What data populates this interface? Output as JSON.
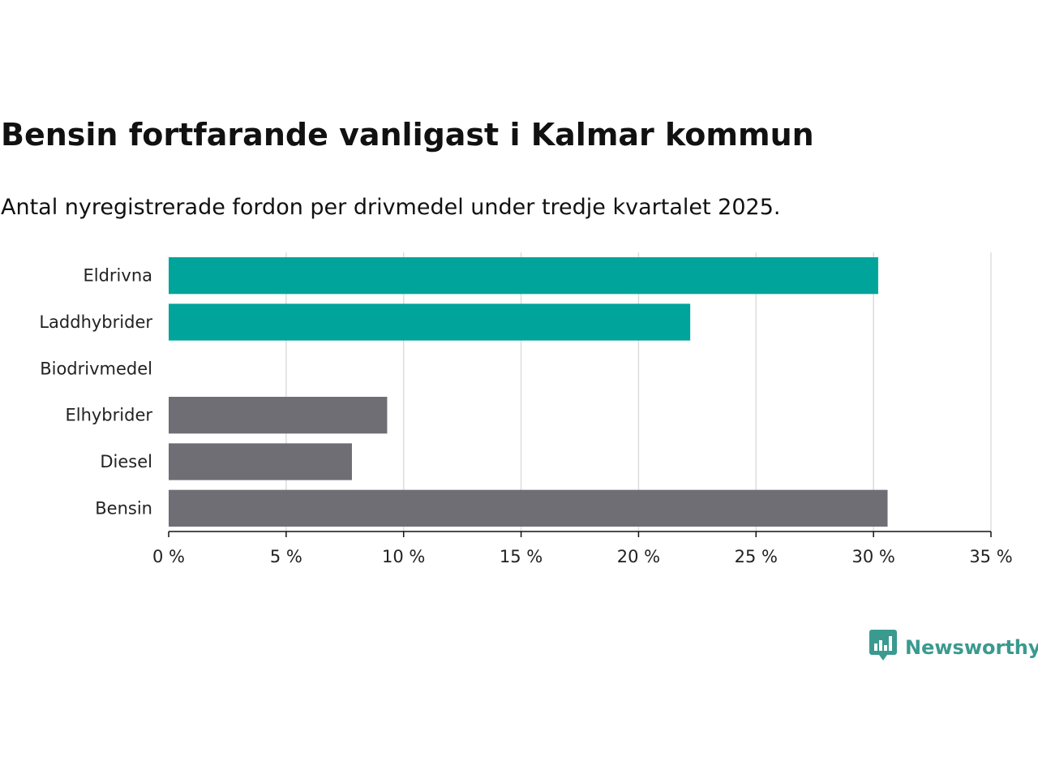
{
  "chart_data": {
    "type": "bar",
    "orientation": "horizontal",
    "title": "Bensin fortfarande vanligast i Kalmar kommun",
    "subtitle": "Antal nyregistrerade fordon per drivmedel under tredje kvartalet 2025.",
    "categories": [
      "Eldrivna",
      "Laddhybrider",
      "Biodrivmedel",
      "Elhybrider",
      "Diesel",
      "Bensin"
    ],
    "values": [
      30.2,
      22.2,
      0,
      9.3,
      7.8,
      30.6
    ],
    "bar_colors": [
      "#00a49a",
      "#00a49a",
      "#6f6e74",
      "#6f6e74",
      "#6f6e74",
      "#6f6e74"
    ],
    "xlim": [
      0,
      35
    ],
    "x_ticks": [
      0,
      5,
      10,
      15,
      20,
      25,
      30,
      35
    ],
    "x_tick_labels": [
      "0 %",
      "5 %",
      "10 %",
      "15 %",
      "20 %",
      "25 %",
      "30 %",
      "35 %"
    ],
    "xlabel": "",
    "ylabel": "",
    "grid": true
  },
  "brand": {
    "name": "Newsworthy",
    "color": "#3a9a8f",
    "icon": "bar-chart-speech-bubble-icon"
  }
}
